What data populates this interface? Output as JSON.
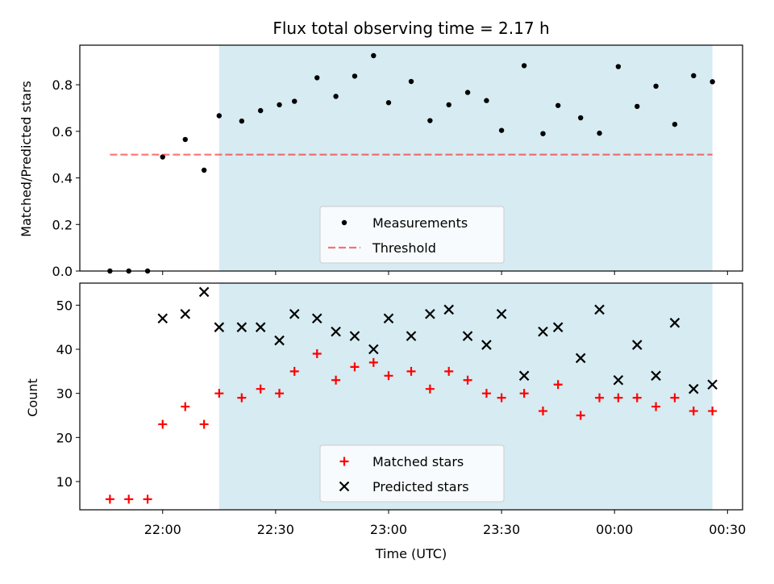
{
  "title": "Flux total observing time = 2.17 h",
  "x_axis": {
    "label": "Time (UTC)",
    "ticks": [
      "22:00",
      "22:30",
      "23:00",
      "23:30",
      "00:00",
      "00:30"
    ]
  },
  "colors": {
    "shaded": "#add8e6",
    "threshold": "#ff0000",
    "measurements": "#000000",
    "matched": "#ff0000",
    "predicted": "#000000"
  },
  "chart_data": [
    {
      "type": "scatter",
      "ylabel": "Matched/Predicted stars",
      "ylim": [
        0,
        0.97
      ],
      "yticks": [
        "0.0",
        "0.2",
        "0.4",
        "0.6",
        "0.8"
      ],
      "shaded_region": [
        "22:15",
        "00:26"
      ],
      "legend": {
        "placement": "lower-center",
        "entries": [
          "Measurements",
          "Threshold"
        ]
      },
      "series": [
        {
          "name": "Measurements",
          "marker": "dot",
          "x": [
            "21:46",
            "21:51",
            "21:56",
            "22:00",
            "22:06",
            "22:11",
            "22:15",
            "22:21",
            "22:26",
            "22:31",
            "22:35",
            "22:41",
            "22:46",
            "22:51",
            "22:56",
            "23:00",
            "23:06",
            "23:11",
            "23:16",
            "23:21",
            "23:26",
            "23:30",
            "23:36",
            "23:41",
            "23:45",
            "23:51",
            "23:56",
            "00:01",
            "00:06",
            "00:11",
            "00:16",
            "00:21",
            "00:26"
          ],
          "y": [
            0,
            0,
            0,
            0.49,
            0.565,
            0.433,
            0.667,
            0.644,
            0.689,
            0.714,
            0.729,
            0.83,
            0.75,
            0.837,
            0.925,
            0.723,
            0.814,
            0.646,
            0.714,
            0.767,
            0.732,
            0.604,
            0.882,
            0.59,
            0.711,
            0.658,
            0.592,
            0.878,
            0.707,
            0.794,
            0.63,
            0.839,
            0.813
          ]
        },
        {
          "name": "Threshold",
          "line": "dashed",
          "x": [
            "21:46",
            "00:26"
          ],
          "y": [
            0.5,
            0.5
          ]
        }
      ]
    },
    {
      "type": "scatter",
      "ylabel": "Count",
      "ylim": [
        3.6,
        55
      ],
      "yticks": [
        "10",
        "20",
        "30",
        "40",
        "50"
      ],
      "shaded_region": [
        "22:15",
        "00:26"
      ],
      "legend": {
        "placement": "lower-center",
        "entries": [
          "Matched stars",
          "Predicted stars"
        ]
      },
      "series": [
        {
          "name": "Matched stars",
          "marker": "plus",
          "x": [
            "21:46",
            "21:51",
            "21:56",
            "22:00",
            "22:06",
            "22:11",
            "22:15",
            "22:21",
            "22:26",
            "22:31",
            "22:35",
            "22:41",
            "22:46",
            "22:51",
            "22:56",
            "23:00",
            "23:06",
            "23:11",
            "23:16",
            "23:21",
            "23:26",
            "23:30",
            "23:36",
            "23:41",
            "23:45",
            "23:51",
            "23:56",
            "00:01",
            "00:06",
            "00:11",
            "00:16",
            "00:21",
            "00:26"
          ],
          "y": [
            6,
            6,
            6,
            23,
            27,
            23,
            30,
            29,
            31,
            30,
            35,
            39,
            33,
            36,
            37,
            34,
            35,
            31,
            35,
            33,
            30,
            29,
            30,
            26,
            32,
            25,
            29,
            29,
            29,
            27,
            29,
            26,
            26
          ]
        },
        {
          "name": "Predicted stars",
          "marker": "x",
          "x": [
            "22:00",
            "22:06",
            "22:11",
            "22:15",
            "22:21",
            "22:26",
            "22:31",
            "22:35",
            "22:41",
            "22:46",
            "22:51",
            "22:56",
            "23:00",
            "23:06",
            "23:11",
            "23:16",
            "23:21",
            "23:26",
            "23:30",
            "23:36",
            "23:41",
            "23:45",
            "23:51",
            "23:56",
            "00:01",
            "00:06",
            "00:11",
            "00:16",
            "00:21",
            "00:26"
          ],
          "y": [
            47,
            48,
            53,
            45,
            45,
            45,
            42,
            48,
            47,
            44,
            43,
            40,
            47,
            43,
            48,
            49,
            43,
            41,
            48,
            34,
            44,
            45,
            38,
            49,
            33,
            41,
            34,
            46,
            31,
            32
          ]
        }
      ]
    }
  ]
}
